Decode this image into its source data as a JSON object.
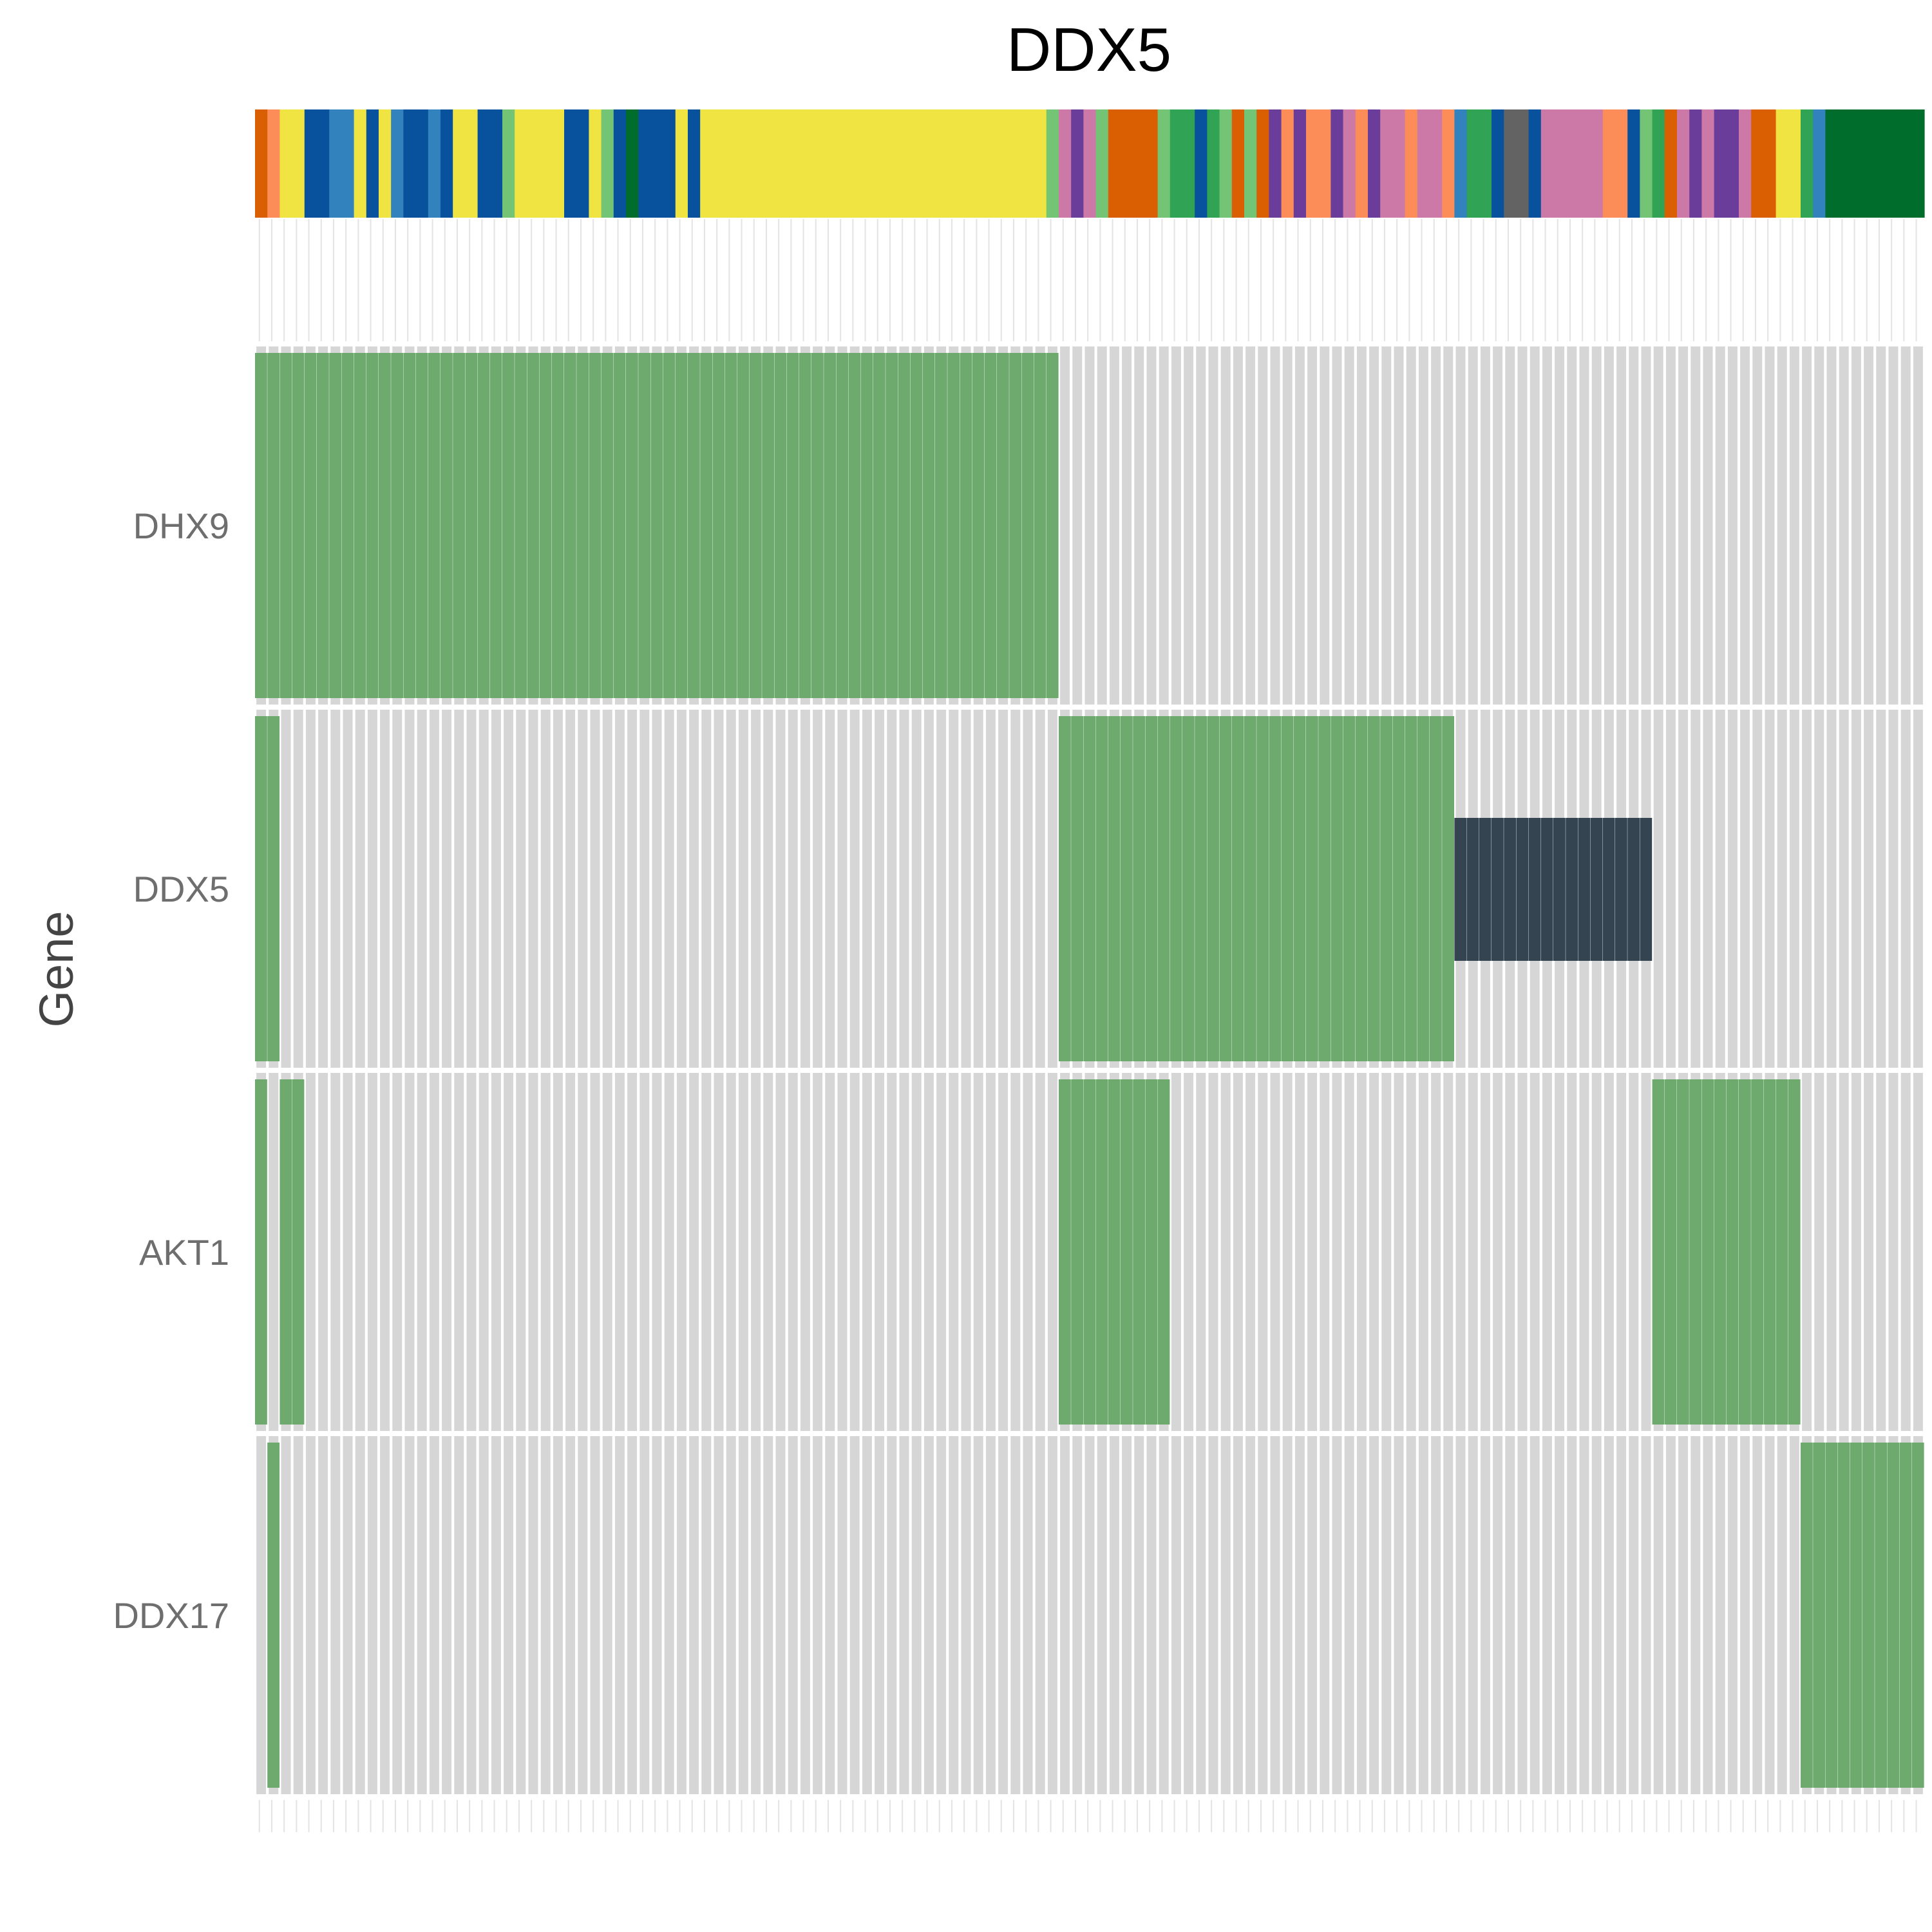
{
  "chart_data": {
    "type": "heatmap",
    "title": "DDX5",
    "ylabel": "Gene",
    "n_samples": 135,
    "genes": [
      "DHX9",
      "DDX5",
      "AKT1",
      "DDX17"
    ],
    "alteration_colors": {
      "background": "#d6d6d6",
      "amplification": "#6eaa6e",
      "mutation": "#344450"
    },
    "alterations": [
      {
        "gene": "DHX9",
        "type": "amplification",
        "ranges": [
          [
            0,
            64
          ]
        ]
      },
      {
        "gene": "DDX5",
        "type": "amplification",
        "ranges": [
          [
            0,
            1
          ],
          [
            65,
            96
          ]
        ]
      },
      {
        "gene": "DDX5",
        "type": "mutation",
        "ranges": [
          [
            97,
            112
          ]
        ]
      },
      {
        "gene": "AKT1",
        "type": "amplification",
        "ranges": [
          [
            0,
            0
          ],
          [
            2,
            3
          ],
          [
            65,
            73
          ],
          [
            113,
            124
          ]
        ]
      },
      {
        "gene": "DDX17",
        "type": "amplification",
        "ranges": [
          [
            1,
            1
          ],
          [
            125,
            134
          ]
        ]
      }
    ],
    "annotation_colors": [
      "#d95f02",
      "#fc8d59",
      "#f0e442",
      "#f0e442",
      "#08519c",
      "#08519c",
      "#3182bd",
      "#3182bd",
      "#f0e442",
      "#08519c",
      "#f0e442",
      "#3182bd",
      "#08519c",
      "#08519c",
      "#3182bd",
      "#08519c",
      "#f0e442",
      "#f0e442",
      "#08519c",
      "#08519c",
      "#74c476",
      "#f0e442",
      "#f0e442",
      "#f0e442",
      "#f0e442",
      "#08519c",
      "#08519c",
      "#f0e442",
      "#74c476",
      "#08519c",
      "#006d2c",
      "#08519c",
      "#08519c",
      "#08519c",
      "#f0e442",
      "#08519c",
      "#f0e442",
      "#f0e442",
      "#f0e442",
      "#f0e442",
      "#f0e442",
      "#f0e442",
      "#f0e442",
      "#f0e442",
      "#f0e442",
      "#f0e442",
      "#f0e442",
      "#f0e442",
      "#f0e442",
      "#f0e442",
      "#f0e442",
      "#f0e442",
      "#f0e442",
      "#f0e442",
      "#f0e442",
      "#f0e442",
      "#f0e442",
      "#f0e442",
      "#f0e442",
      "#f0e442",
      "#f0e442",
      "#f0e442",
      "#f0e442",
      "#f0e442",
      "#74c476",
      "#cc79a7",
      "#6a3d9a",
      "#cc79a7",
      "#74c476",
      "#d95f02",
      "#d95f02",
      "#d95f02",
      "#d95f02",
      "#74c476",
      "#31a354",
      "#31a354",
      "#08519c",
      "#31a354",
      "#74c476",
      "#d95f02",
      "#74c476",
      "#d95f02",
      "#6a3d9a",
      "#fc8d59",
      "#6a3d9a",
      "#fc8d59",
      "#fc8d59",
      "#6a3d9a",
      "#cc79a7",
      "#fc8d59",
      "#6a3d9a",
      "#cc79a7",
      "#cc79a7",
      "#fc8d59",
      "#cc79a7",
      "#cc79a7",
      "#fc8d59",
      "#3182bd",
      "#31a354",
      "#31a354",
      "#08519c",
      "#636363",
      "#636363",
      "#08519c",
      "#cc79a7",
      "#cc79a7",
      "#cc79a7",
      "#cc79a7",
      "#cc79a7",
      "#fc8d59",
      "#fc8d59",
      "#08519c",
      "#74c476",
      "#31a354",
      "#d95f02",
      "#cc79a7",
      "#6a3d9a",
      "#cc79a7",
      "#6a3d9a",
      "#6a3d9a",
      "#cc79a7",
      "#d95f02",
      "#d95f02",
      "#f0e442",
      "#f0e442",
      "#31a354",
      "#3182bd",
      "#006d2c",
      "#006d2c",
      "#006d2c",
      "#006d2c",
      "#006d2c",
      "#006d2c",
      "#006d2c",
      "#006d2c"
    ],
    "grid": true,
    "legend": "none"
  }
}
